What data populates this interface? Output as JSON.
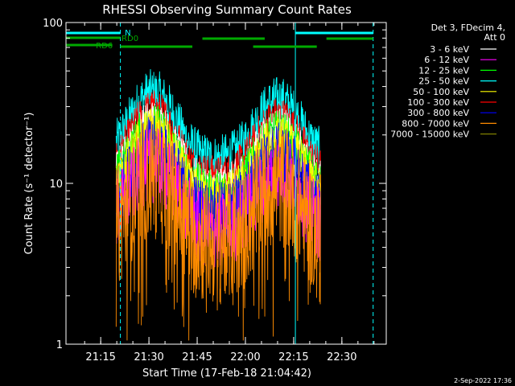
{
  "chart_data": {
    "type": "line",
    "title": "RHESSI Observing Summary Count Rates",
    "xlabel": "Start Time (17-Feb-18 21:04:42)",
    "ylabel": "Count Rate (s⁻¹ detector⁻¹)",
    "yscale": "log",
    "ylim": [
      1,
      100
    ],
    "xlim_minutes": [
      21.07,
      22.73
    ],
    "x_ticks": [
      {
        "value": 21.25,
        "label": "21:15"
      },
      {
        "value": 21.5,
        "label": "21:30"
      },
      {
        "value": 21.75,
        "label": "21:45"
      },
      {
        "value": 22.0,
        "label": "22:00"
      },
      {
        "value": 22.25,
        "label": "22:15"
      },
      {
        "value": 22.5,
        "label": "22:30"
      }
    ],
    "y_ticks": [
      {
        "value": 1,
        "label": "1"
      },
      {
        "value": 10,
        "label": "10"
      },
      {
        "value": 100,
        "label": "100"
      }
    ],
    "legend_header": [
      "Det 3, FDecim 4,",
      "Att 0"
    ],
    "legend_position": "right",
    "series": [
      {
        "name": "3 - 6 keV",
        "color": "#ffffff"
      },
      {
        "name": "6 - 12 keV",
        "color": "#ff00ff"
      },
      {
        "name": "12 - 25 keV",
        "color": "#00ff00"
      },
      {
        "name": "25 - 50 keV",
        "color": "#00ffff"
      },
      {
        "name": "50 - 100 keV",
        "color": "#ffff00"
      },
      {
        "name": "100 - 300 keV",
        "color": "#ff0000"
      },
      {
        "name": "300 - 800 keV",
        "color": "#0000ff"
      },
      {
        "name": "800 - 7000 keV",
        "color": "#ff8c00"
      },
      {
        "name": "7000 - 15000 keV",
        "color": "#808000"
      }
    ],
    "annotations": [
      {
        "text": "N",
        "color": "#00ffff"
      },
      {
        "text": "RD0",
        "color": "#00aa00"
      },
      {
        "text": "RD6",
        "color": "#00aa00"
      }
    ],
    "footer_date": "2-Sep-2022 17:36"
  }
}
